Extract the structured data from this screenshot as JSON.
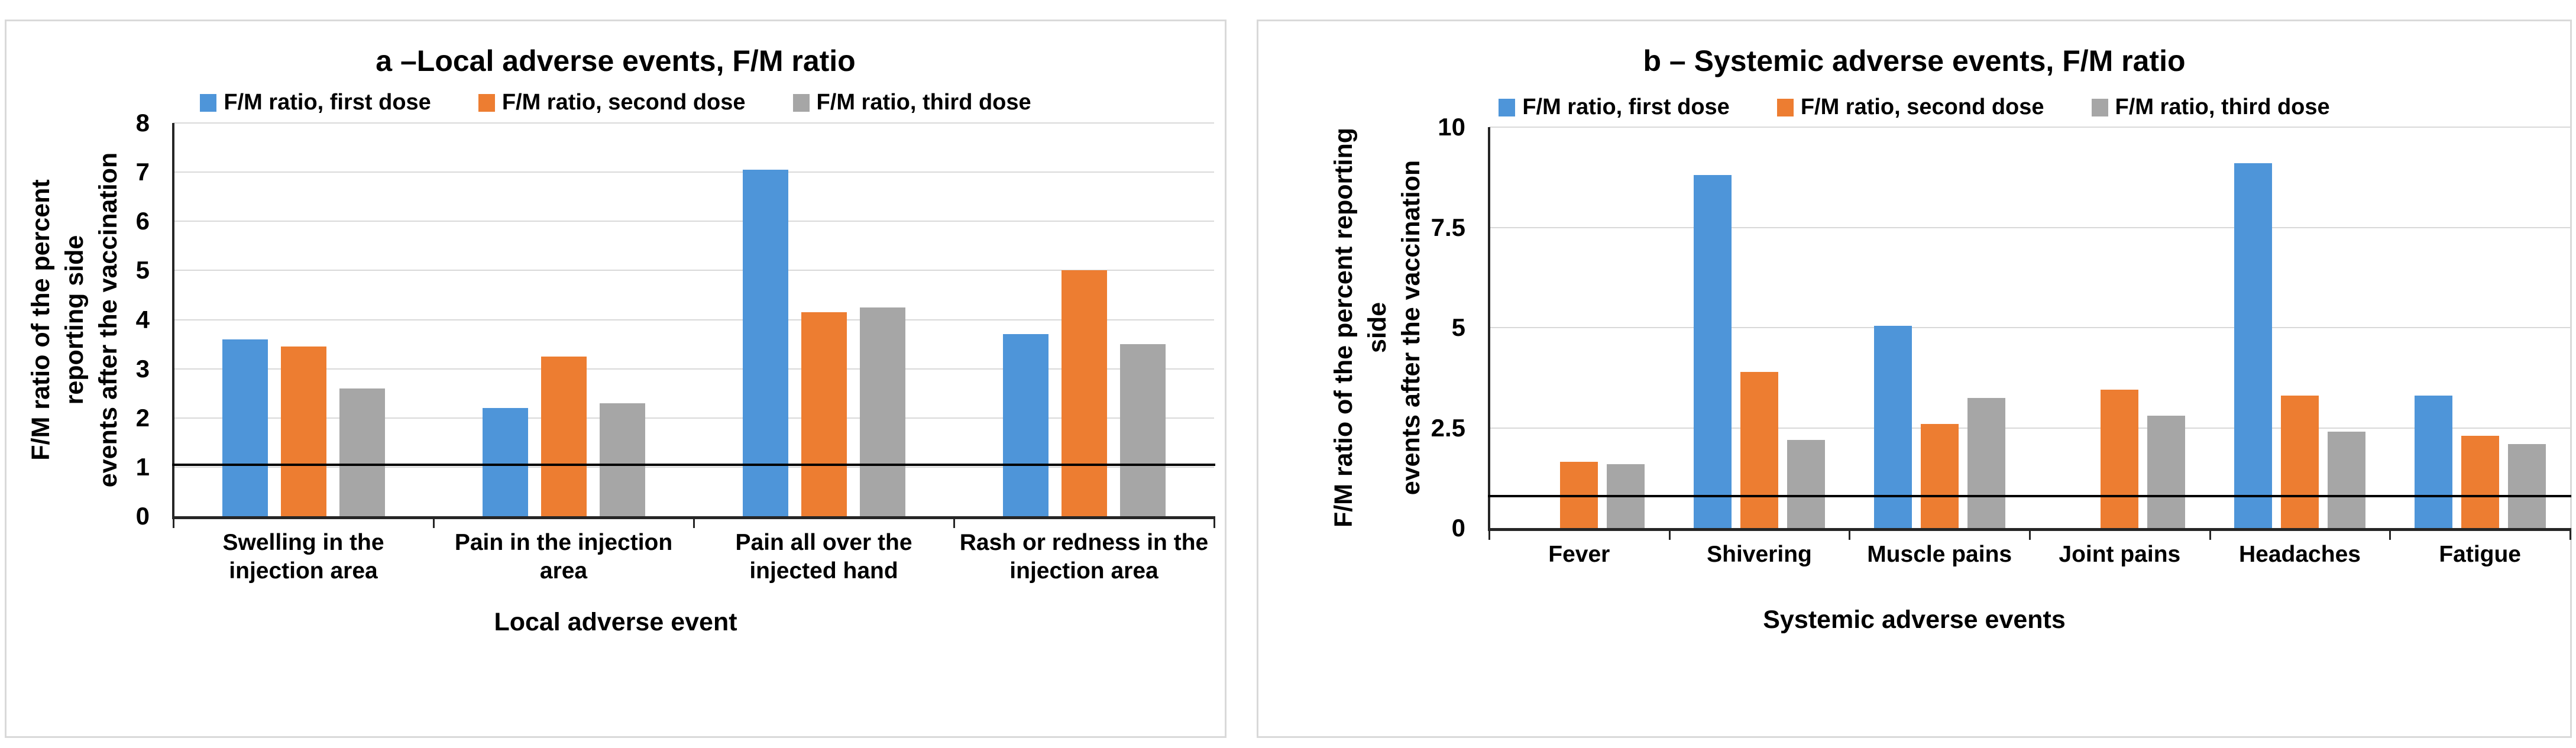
{
  "page": {
    "background": "#FFFFFF",
    "panel_border_color": "#D9D9D9",
    "gridline_color": "#D9D9D9",
    "axis_color": "#262626",
    "reference_line_color": "#000000"
  },
  "chart_data": [
    {
      "type": "bar",
      "panel": "a",
      "title": "a –Local adverse events, F/M ratio",
      "xlabel": "Local adverse event",
      "ylabel": "F/M ratio of the percent reporting side\nevents after the vaccination",
      "ylim": [
        0,
        8
      ],
      "yticks": [
        "8",
        "7",
        "6",
        "5",
        "4",
        "3",
        "2",
        "1",
        "0"
      ],
      "grid": true,
      "legend_position": "top",
      "reference_line": 1.05,
      "categories": [
        "Swelling in the\ninjection area",
        "Pain in the injection\narea",
        "Pain all over the\ninjected hand",
        "Rash or redness in the\ninjection area"
      ],
      "series": [
        {
          "name": "F/M ratio, first dose",
          "color": "#4E95D9",
          "values": [
            3.6,
            2.2,
            7.05,
            3.7
          ]
        },
        {
          "name": "F/M ratio, second dose",
          "color": "#ED7D31",
          "values": [
            3.45,
            3.25,
            4.15,
            5.0
          ]
        },
        {
          "name": "F/M ratio, third dose",
          "color": "#A6A6A6",
          "values": [
            2.6,
            2.3,
            4.25,
            3.5
          ]
        }
      ]
    },
    {
      "type": "bar",
      "panel": "b",
      "title": "b – Systemic adverse events, F/M ratio",
      "xlabel": "Systemic adverse events",
      "ylabel": "F/M ratio of the percent reporting side\nevents after the vaccination",
      "ylim": [
        0,
        10
      ],
      "yticks": [
        "10",
        "7.5",
        "5",
        "2.5",
        "0"
      ],
      "grid": true,
      "legend_position": "top",
      "reference_line": 0.8,
      "categories": [
        "Fever",
        "Shivering",
        "Muscle pains",
        "Joint pains",
        "Headaches",
        "Fatigue"
      ],
      "series": [
        {
          "name": "F/M ratio, first dose",
          "color": "#4E95D9",
          "values": [
            0,
            8.8,
            5.05,
            0,
            9.1,
            3.3
          ]
        },
        {
          "name": "F/M ratio, second dose",
          "color": "#ED7D31",
          "values": [
            1.65,
            3.9,
            2.6,
            3.45,
            3.3,
            2.3
          ]
        },
        {
          "name": "F/M ratio, third dose",
          "color": "#A6A6A6",
          "values": [
            1.6,
            2.2,
            3.25,
            2.8,
            2.4,
            2.1
          ]
        }
      ]
    }
  ]
}
